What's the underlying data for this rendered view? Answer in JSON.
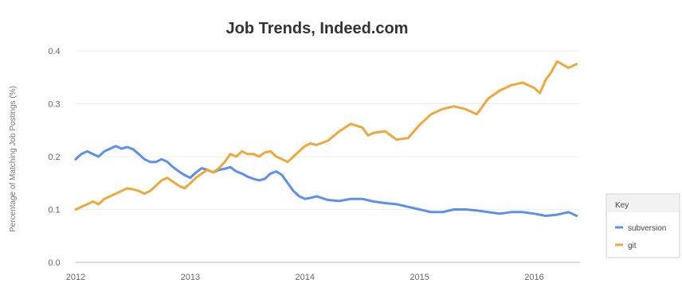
{
  "chart_data": {
    "type": "line",
    "title": "Job Trends, Indeed.com",
    "xlabel": "",
    "ylabel": "Percentage of Matching Job Postings (%)",
    "xlim": [
      2012,
      2016.4
    ],
    "ylim": [
      0,
      0.4
    ],
    "x_ticks": [
      "2012",
      "2013",
      "2014",
      "2015",
      "2016"
    ],
    "y_ticks": [
      "0.0",
      "0.1",
      "0.2",
      "0.3",
      "0.4"
    ],
    "grid": true,
    "legend": {
      "title": "Key",
      "placement": "right"
    },
    "series": [
      {
        "name": "subversion",
        "color": "#5b8ff0",
        "x": [
          2012.0,
          2012.05,
          2012.1,
          2012.15,
          2012.2,
          2012.25,
          2012.3,
          2012.35,
          2012.4,
          2012.45,
          2012.5,
          2012.55,
          2012.6,
          2012.65,
          2012.7,
          2012.75,
          2012.8,
          2012.85,
          2012.9,
          2012.95,
          2013.0,
          2013.05,
          2013.1,
          2013.15,
          2013.2,
          2013.25,
          2013.3,
          2013.35,
          2013.4,
          2013.45,
          2013.5,
          2013.55,
          2013.6,
          2013.65,
          2013.7,
          2013.75,
          2013.8,
          2013.85,
          2013.9,
          2013.95,
          2014.0,
          2014.05,
          2014.1,
          2014.2,
          2014.3,
          2014.4,
          2014.5,
          2014.6,
          2014.7,
          2014.8,
          2014.9,
          2015.0,
          2015.1,
          2015.2,
          2015.3,
          2015.4,
          2015.5,
          2015.6,
          2015.7,
          2015.8,
          2015.9,
          2016.0,
          2016.1,
          2016.2,
          2016.3,
          2016.37
        ],
        "values": [
          0.195,
          0.205,
          0.21,
          0.205,
          0.2,
          0.21,
          0.215,
          0.22,
          0.215,
          0.218,
          0.214,
          0.205,
          0.195,
          0.19,
          0.19,
          0.195,
          0.19,
          0.18,
          0.172,
          0.165,
          0.16,
          0.17,
          0.178,
          0.175,
          0.17,
          0.175,
          0.177,
          0.18,
          0.172,
          0.168,
          0.162,
          0.158,
          0.155,
          0.158,
          0.168,
          0.172,
          0.165,
          0.15,
          0.135,
          0.125,
          0.12,
          0.122,
          0.125,
          0.118,
          0.116,
          0.12,
          0.12,
          0.115,
          0.112,
          0.11,
          0.105,
          0.1,
          0.095,
          0.095,
          0.1,
          0.1,
          0.098,
          0.095,
          0.092,
          0.095,
          0.095,
          0.092,
          0.088,
          0.09,
          0.095,
          0.088
        ]
      },
      {
        "name": "git",
        "color": "#f0a83c",
        "x": [
          2012.0,
          2012.05,
          2012.1,
          2012.15,
          2012.2,
          2012.25,
          2012.3,
          2012.35,
          2012.4,
          2012.45,
          2012.5,
          2012.55,
          2012.6,
          2012.65,
          2012.7,
          2012.75,
          2012.8,
          2012.85,
          2012.9,
          2012.95,
          2013.0,
          2013.05,
          2013.1,
          2013.15,
          2013.2,
          2013.25,
          2013.3,
          2013.35,
          2013.4,
          2013.45,
          2013.5,
          2013.55,
          2013.6,
          2013.65,
          2013.7,
          2013.75,
          2013.8,
          2013.85,
          2013.9,
          2013.95,
          2014.0,
          2014.05,
          2014.1,
          2014.2,
          2014.3,
          2014.4,
          2014.5,
          2014.55,
          2014.6,
          2014.7,
          2014.8,
          2014.9,
          2015.0,
          2015.1,
          2015.2,
          2015.3,
          2015.4,
          2015.5,
          2015.6,
          2015.7,
          2015.8,
          2015.9,
          2016.0,
          2016.05,
          2016.1,
          2016.15,
          2016.2,
          2016.3,
          2016.37
        ],
        "values": [
          0.1,
          0.105,
          0.11,
          0.115,
          0.11,
          0.12,
          0.125,
          0.13,
          0.135,
          0.14,
          0.138,
          0.135,
          0.13,
          0.135,
          0.145,
          0.155,
          0.16,
          0.152,
          0.145,
          0.14,
          0.15,
          0.16,
          0.168,
          0.175,
          0.17,
          0.178,
          0.19,
          0.205,
          0.2,
          0.21,
          0.205,
          0.205,
          0.2,
          0.208,
          0.21,
          0.2,
          0.195,
          0.19,
          0.2,
          0.21,
          0.22,
          0.225,
          0.222,
          0.23,
          0.248,
          0.262,
          0.255,
          0.24,
          0.245,
          0.248,
          0.232,
          0.235,
          0.26,
          0.28,
          0.29,
          0.295,
          0.29,
          0.28,
          0.31,
          0.325,
          0.335,
          0.34,
          0.33,
          0.32,
          0.345,
          0.36,
          0.38,
          0.368,
          0.375
        ]
      }
    ]
  }
}
